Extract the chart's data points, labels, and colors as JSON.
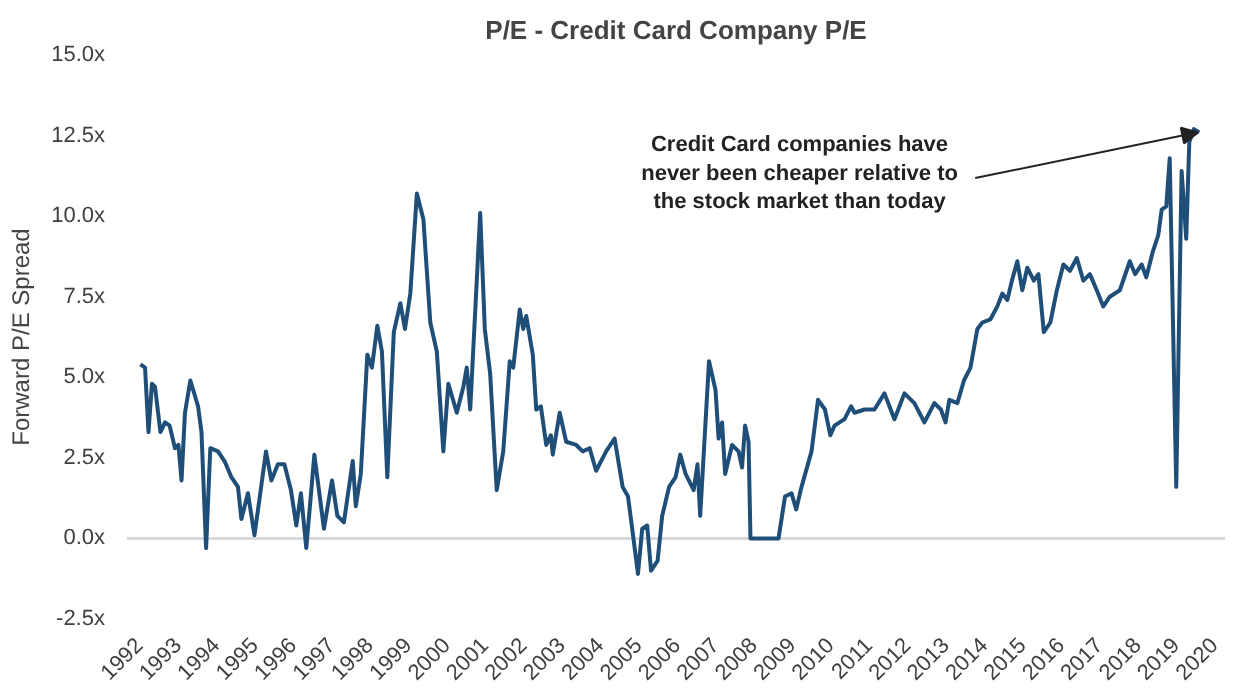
{
  "chart_data": {
    "type": "line",
    "title": "P/E - Credit Card Company P/E",
    "ylabel": "Forward P/E Spread",
    "x": [
      1992.05,
      1992.17,
      1992.26,
      1992.35,
      1992.43,
      1992.57,
      1992.69,
      1992.81,
      1992.95,
      1993.04,
      1993.12,
      1993.21,
      1993.35,
      1993.55,
      1993.64,
      1993.76,
      1993.87,
      1994.07,
      1994.24,
      1994.42,
      1994.59,
      1994.68,
      1994.85,
      1995.02,
      1995.16,
      1995.32,
      1995.46,
      1995.63,
      1995.8,
      1995.97,
      1996.11,
      1996.23,
      1996.37,
      1996.58,
      1996.83,
      1997.04,
      1997.18,
      1997.35,
      1997.58,
      1997.66,
      1997.79,
      1997.96,
      1998.08,
      1998.22,
      1998.34,
      1998.48,
      1998.65,
      1998.82,
      1998.94,
      1999.08,
      1999.25,
      1999.42,
      1999.6,
      1999.77,
      1999.94,
      2000.07,
      2000.29,
      2000.46,
      2000.55,
      2000.64,
      2000.9,
      2001.02,
      2001.16,
      2001.33,
      2001.5,
      2001.67,
      2001.76,
      2001.93,
      2002.02,
      2002.1,
      2002.27,
      2002.36,
      2002.48,
      2002.62,
      2002.74,
      2002.79,
      2002.97,
      2003.14,
      2003.4,
      2003.57,
      2003.75,
      2003.92,
      2004.18,
      2004.4,
      2004.61,
      2004.75,
      2004.87,
      2005.01,
      2005.12,
      2005.25,
      2005.35,
      2005.52,
      2005.64,
      2005.82,
      2005.99,
      2006.11,
      2006.25,
      2006.46,
      2006.56,
      2006.63,
      2006.86,
      2007.03,
      2007.11,
      2007.2,
      2007.28,
      2007.46,
      2007.63,
      2007.72,
      2007.8,
      2007.89,
      2007.94,
      2008.67,
      2008.84,
      2009.01,
      2009.13,
      2009.27,
      2009.53,
      2009.7,
      2009.88,
      2010.02,
      2010.13,
      2010.39,
      2010.56,
      2010.65,
      2010.91,
      2011.17,
      2011.43,
      2011.69,
      2011.95,
      2012.21,
      2012.47,
      2012.73,
      2012.9,
      2013.02,
      2013.12,
      2013.33,
      2013.5,
      2013.67,
      2013.85,
      2013.98,
      2014.19,
      2014.37,
      2014.5,
      2014.63,
      2014.75,
      2014.89,
      2015.02,
      2015.15,
      2015.32,
      2015.44,
      2015.58,
      2015.75,
      2015.92,
      2016.09,
      2016.26,
      2016.44,
      2016.61,
      2016.78,
      2016.96,
      2017.13,
      2017.3,
      2017.56,
      2017.82,
      2017.96,
      2018.13,
      2018.25,
      2018.42,
      2018.56,
      2018.65,
      2018.77,
      2018.86,
      2019.03,
      2019.17,
      2019.29,
      2019.37,
      2019.49,
      2019.63
    ],
    "series": [
      {
        "color": "#1f4e79",
        "values": [
          5.4,
          5.3,
          3.3,
          4.8,
          4.7,
          3.3,
          3.6,
          3.5,
          2.8,
          2.9,
          1.8,
          3.9,
          4.9,
          4.1,
          3.3,
          -0.3,
          2.8,
          2.7,
          2.4,
          1.9,
          1.6,
          0.6,
          1.4,
          0.1,
          1.3,
          2.7,
          1.8,
          2.3,
          2.3,
          1.5,
          0.4,
          1.4,
          -0.3,
          2.6,
          0.3,
          1.8,
          0.7,
          0.5,
          2.4,
          1.0,
          2.0,
          5.7,
          5.3,
          6.6,
          5.8,
          1.9,
          6.4,
          7.3,
          6.5,
          7.6,
          10.7,
          9.9,
          6.7,
          5.8,
          2.7,
          4.8,
          3.9,
          4.7,
          5.3,
          4.0,
          10.1,
          6.5,
          5.1,
          1.5,
          2.7,
          5.5,
          5.3,
          7.1,
          6.5,
          6.9,
          5.7,
          4.0,
          4.1,
          2.9,
          3.2,
          2.6,
          3.9,
          3.0,
          2.9,
          2.7,
          2.8,
          2.1,
          2.7,
          3.1,
          1.6,
          1.3,
          0.2,
          -1.1,
          0.3,
          0.4,
          -1.0,
          -0.7,
          0.7,
          1.6,
          1.9,
          2.6,
          2.0,
          1.5,
          2.3,
          0.7,
          5.5,
          4.6,
          3.1,
          3.6,
          2.0,
          2.9,
          2.7,
          2.2,
          3.5,
          3.0,
          0.0,
          0.0,
          1.3,
          1.4,
          0.9,
          1.6,
          2.7,
          4.3,
          4.0,
          3.2,
          3.5,
          3.7,
          4.1,
          3.9,
          4.0,
          4.0,
          4.5,
          3.7,
          4.5,
          4.2,
          3.6,
          4.2,
          4.0,
          3.6,
          4.3,
          4.2,
          4.9,
          5.3,
          6.5,
          6.7,
          6.8,
          7.2,
          7.6,
          7.4,
          8.0,
          8.6,
          7.7,
          8.4,
          8.0,
          8.2,
          6.4,
          6.7,
          7.7,
          8.5,
          8.3,
          8.7,
          8.0,
          8.2,
          7.7,
          7.2,
          7.5,
          7.7,
          8.6,
          8.2,
          8.5,
          8.1,
          8.9,
          9.4,
          10.2,
          10.3,
          11.8,
          1.6,
          11.4,
          9.3,
          12.3,
          12.7,
          12.6
        ]
      }
    ],
    "xlim": [
      1991.7,
      2020.3
    ],
    "ylim": [
      -2.5,
      15
    ],
    "xticks": [
      1992,
      1993,
      1994,
      1995,
      1996,
      1997,
      1998,
      1999,
      2000,
      2001,
      2002,
      2003,
      2004,
      2005,
      2006,
      2007,
      2008,
      2009,
      2010,
      2011,
      2012,
      2013,
      2014,
      2015,
      2016,
      2017,
      2018,
      2019,
      2020
    ],
    "yticks": [
      {
        "value": -2.5,
        "label": "-2.5x"
      },
      {
        "value": 0,
        "label": "0.0x"
      },
      {
        "value": 2.5,
        "label": "2.5x"
      },
      {
        "value": 5,
        "label": "5.0x"
      },
      {
        "value": 7.5,
        "label": "7.5x"
      },
      {
        "value": 10,
        "label": "10.0x"
      },
      {
        "value": 12.5,
        "label": "12.5x"
      },
      {
        "value": 15,
        "label": "15.0x"
      }
    ],
    "ref_lines": [
      {
        "axis": "y",
        "value": 0,
        "label": null,
        "color": "#d9d9d9"
      }
    ],
    "annotations": [
      {
        "text": "Credit Card companies have\nnever been cheaper relative to\nthe stock market than today",
        "x": 2019.6,
        "y": 12.6
      }
    ],
    "grid": false,
    "marker": "none",
    "line_style": "solid"
  }
}
